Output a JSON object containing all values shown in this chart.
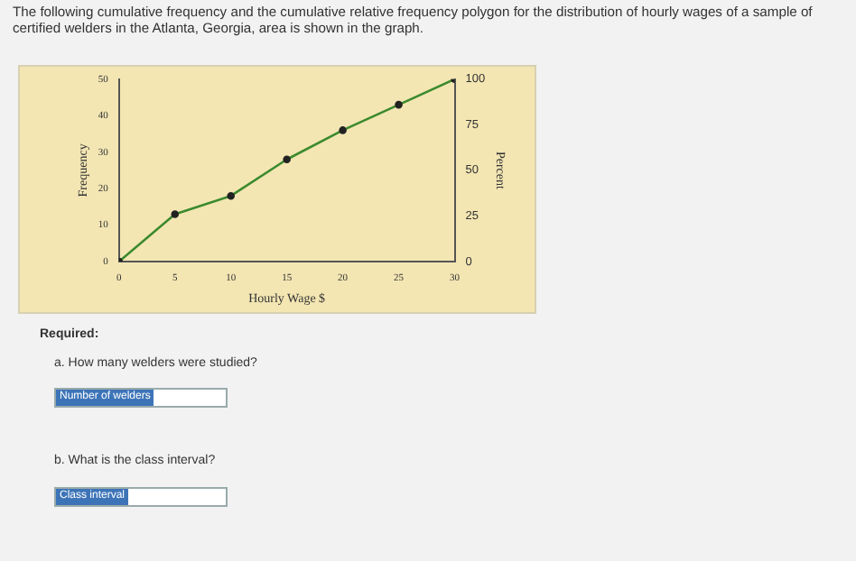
{
  "chart_data": {
    "type": "line",
    "title": "The following cumulative frequency and the cumulative relative frequency polygon for the distribution of hourly wages of a sample of certified welders in the Atlanta, Georgia, area is shown in the graph.",
    "xlabel": "Hourly Wage $",
    "ylabel": "Frequency",
    "y2label": "Percent",
    "x": [
      0,
      5,
      10,
      15,
      20,
      25,
      30
    ],
    "series": [
      {
        "color": "#3c8a2e",
        "values": [
          0,
          13,
          18,
          28,
          36,
          43,
          50
        ]
      }
    ],
    "xlim": [
      0,
      30
    ],
    "xticks": [
      0,
      5,
      10,
      15,
      20,
      25,
      30
    ],
    "ylim": [
      0,
      50
    ],
    "yticks": [
      0,
      10,
      20,
      30,
      40,
      50
    ],
    "y2lim": [
      0,
      100
    ],
    "y2ticks": [
      0,
      25,
      50,
      75,
      100
    ],
    "grid": false,
    "legend": false,
    "marker": "circle",
    "annotations": [
      "Required:",
      "a. How many welders were studied?",
      "Number of welders",
      "b. What is the class interval?",
      "Class interval"
    ]
  }
}
